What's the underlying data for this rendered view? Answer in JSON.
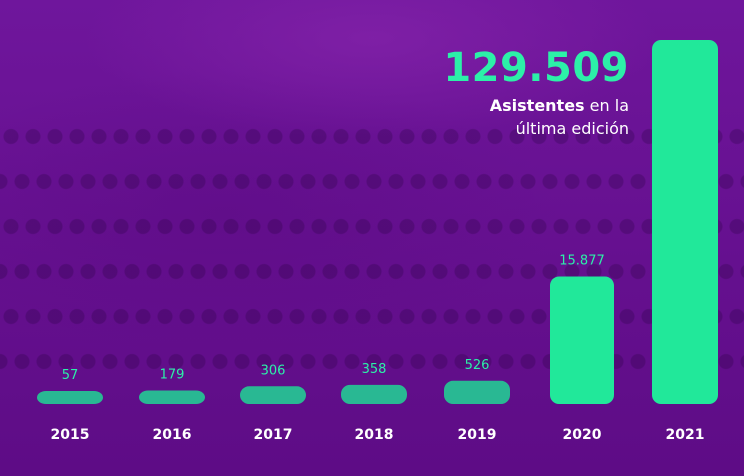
{
  "headline": {
    "value": "129.509",
    "caption_bold": "Asistentes",
    "caption_rest": "en la",
    "caption_line2": "última edición"
  },
  "colors": {
    "bar": "#21e89a",
    "bar_muted": "#25c794",
    "label": "#2cf0a8",
    "axis_text": "#ffffff",
    "background": "#6a1396"
  },
  "chart_data": {
    "type": "bar",
    "title": "",
    "xlabel": "",
    "ylabel": "",
    "categories": [
      "2015",
      "2016",
      "2017",
      "2018",
      "2019",
      "2020",
      "2021"
    ],
    "values": [
      57,
      179,
      306,
      358,
      526,
      15877,
      129509
    ],
    "data_labels": [
      "57",
      "179",
      "306",
      "358",
      "526",
      "15.877",
      ""
    ],
    "grid": false,
    "legend": "none"
  }
}
